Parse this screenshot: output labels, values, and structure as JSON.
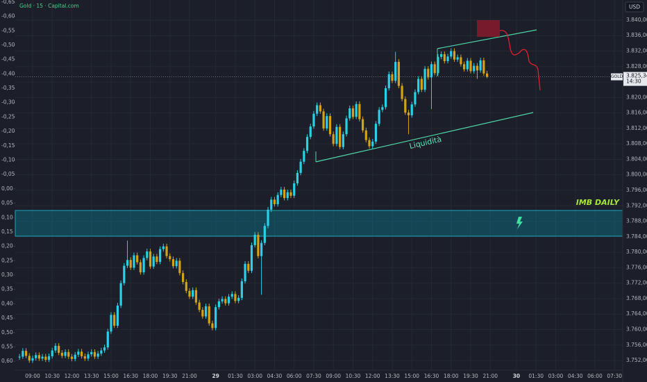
{
  "chart_data": {
    "type": "candlestick",
    "title": "Gold · 15 · Capital.com",
    "symbol": "GOLD",
    "currency": "USD",
    "countdown": "14:30",
    "last_price": {
      "value": 3825.34,
      "label": "3.825,34"
    },
    "annotations": [
      "Liquidità",
      "IMB DAILY"
    ],
    "up_color": "#2bd0e6",
    "down_color": "#d4a21a",
    "grid": true,
    "y2_inverted": true,
    "xlim": [
      -1.3,
      184.5
    ],
    "xticks": [
      {
        "value": 4,
        "label": "09:00"
      },
      {
        "value": 10,
        "label": "10:30"
      },
      {
        "value": 16,
        "label": "12:00"
      },
      {
        "value": 22,
        "label": "13:30"
      },
      {
        "value": 28,
        "label": "15:00"
      },
      {
        "value": 34,
        "label": "16:30"
      },
      {
        "value": 40,
        "label": "18:00"
      },
      {
        "value": 46,
        "label": "19:30"
      },
      {
        "value": 52,
        "label": "21:00"
      },
      {
        "value": 60,
        "label": "29"
      },
      {
        "value": 66,
        "label": "01:30"
      },
      {
        "value": 72,
        "label": "03:00"
      },
      {
        "value": 78,
        "label": "04:30"
      },
      {
        "value": 84,
        "label": "06:00"
      },
      {
        "value": 90,
        "label": "07:30"
      },
      {
        "value": 96,
        "label": "09:00"
      },
      {
        "value": 102,
        "label": "10:30"
      },
      {
        "value": 108,
        "label": "12:00"
      },
      {
        "value": 114,
        "label": "13:30"
      },
      {
        "value": 120,
        "label": "15:00"
      },
      {
        "value": 126,
        "label": "16:30"
      },
      {
        "value": 132,
        "label": "18:00"
      },
      {
        "value": 138,
        "label": "19:30"
      },
      {
        "value": 144,
        "label": "21:00"
      },
      {
        "value": 152,
        "label": "30"
      },
      {
        "value": 158,
        "label": "01:30"
      },
      {
        "value": 164,
        "label": "03:00"
      },
      {
        "value": 170,
        "label": "04:30"
      },
      {
        "value": 176,
        "label": "06:00"
      },
      {
        "value": 182,
        "label": "07:30"
      }
    ],
    "ylim": [
      3749.5,
      3845.2
    ],
    "yticks": [
      {
        "value": 3752,
        "label": "3.752,00"
      },
      {
        "value": 3756,
        "label": "3.756,00"
      },
      {
        "value": 3760,
        "label": "3.760,00"
      },
      {
        "value": 3764,
        "label": "3.764,00"
      },
      {
        "value": 3768,
        "label": "3.768,00"
      },
      {
        "value": 3772,
        "label": "3.772,00"
      },
      {
        "value": 3776,
        "label": "3.776,00"
      },
      {
        "value": 3780,
        "label": "3.780,00"
      },
      {
        "value": 3784,
        "label": "3.784,00"
      },
      {
        "value": 3788,
        "label": "3.788,00"
      },
      {
        "value": 3792,
        "label": "3.792,00"
      },
      {
        "value": 3796,
        "label": "3.796,00"
      },
      {
        "value": 3800,
        "label": "3.800,00"
      },
      {
        "value": 3804,
        "label": "3.804,00"
      },
      {
        "value": 3808,
        "label": "3.808,00"
      },
      {
        "value": 3812,
        "label": "3.812,00"
      },
      {
        "value": 3816,
        "label": "3.816,00"
      },
      {
        "value": 3820,
        "label": "3.820,00"
      },
      {
        "value": 3824,
        "label": "3.824,00"
      },
      {
        "value": 3828,
        "label": "3.828,00"
      },
      {
        "value": 3832,
        "label": "3.832,00"
      },
      {
        "value": 3836,
        "label": "3.836,00"
      },
      {
        "value": 3840,
        "label": "3.840,00"
      }
    ],
    "y2lim": [
      -0.657,
      0.631
    ],
    "y2ticks": [
      {
        "value": -0.65,
        "label": "-0,65"
      },
      {
        "value": -0.6,
        "label": "-0,60"
      },
      {
        "value": -0.55,
        "label": "-0,55"
      },
      {
        "value": -0.5,
        "label": "-0,50"
      },
      {
        "value": -0.45,
        "label": "-0,45"
      },
      {
        "value": -0.4,
        "label": "-0,40"
      },
      {
        "value": -0.35,
        "label": "-0,35"
      },
      {
        "value": -0.3,
        "label": "-0,30"
      },
      {
        "value": -0.25,
        "label": "-0,25"
      },
      {
        "value": -0.2,
        "label": "-0,20"
      },
      {
        "value": -0.15,
        "label": "-0,15"
      },
      {
        "value": -0.1,
        "label": "-0,10"
      },
      {
        "value": -0.05,
        "label": "-0,05"
      },
      {
        "value": 0,
        "label": "0,00"
      },
      {
        "value": 0.05,
        "label": "0,05"
      },
      {
        "value": 0.1,
        "label": "0,10"
      },
      {
        "value": 0.15,
        "label": "0,15"
      },
      {
        "value": 0.2,
        "label": "0,20"
      },
      {
        "value": 0.25,
        "label": "0,25"
      },
      {
        "value": 0.3,
        "label": "0,30"
      },
      {
        "value": 0.35,
        "label": "0,35"
      },
      {
        "value": 0.4,
        "label": "0,40"
      },
      {
        "value": 0.45,
        "label": "0,45"
      },
      {
        "value": 0.5,
        "label": "0,50"
      },
      {
        "value": 0.55,
        "label": "0,55"
      },
      {
        "value": 0.6,
        "label": "0,60"
      }
    ],
    "open": [
      3752.8,
      3753.0,
      3754.5,
      3753.2,
      3752.0,
      3752.6,
      3753.4,
      3752.5,
      3753.0,
      3752.2,
      3753.1,
      3754.6,
      3755.8,
      3754.0,
      3753.2,
      3754.2,
      3753.0,
      3752.4,
      3753.5,
      3754.3,
      3753.1,
      3752.5,
      3753.6,
      3754.2,
      3753.0,
      3753.8,
      3754.6,
      3755.4,
      3759.5,
      3763.8,
      3761.0,
      3766.2,
      3772.0,
      3776.5,
      3778.0,
      3776.0,
      3779.2,
      3777.4,
      3774.8,
      3778.5,
      3780.2,
      3776.3,
      3778.9,
      3777.5,
      3780.8,
      3781.5,
      3779.0,
      3778.2,
      3776.4,
      3777.8,
      3774.6,
      3772.3,
      3770.0,
      3768.5,
      3770.2,
      3767.0,
      3765.1,
      3763.4,
      3766.0,
      3761.6,
      3760.4,
      3765.8,
      3767.3,
      3767.9,
      3766.8,
      3768.5,
      3769.2,
      3767.4,
      3768.2,
      3772.5,
      3777.0,
      3775.2,
      3781.8,
      3784.5,
      3779.0,
      3782.4,
      3786.8,
      3791.0,
      3793.6,
      3792.4,
      3794.8,
      3796.2,
      3794.0,
      3795.5,
      3794.6,
      3797.8,
      3800.5,
      3803.4,
      3806.2,
      3809.8,
      3812.5,
      3815.8,
      3818.0,
      3816.4,
      3812.0,
      3815.2,
      3810.5,
      3808.0,
      3812.4,
      3807.2,
      3810.5,
      3814.6,
      3817.2,
      3815.0,
      3818.3,
      3814.4,
      3811.5,
      3809.0,
      3807.4,
      3808.6,
      3813.2,
      3816.8,
      3817.5,
      3822.4,
      3826.0,
      3824.3,
      3829.2,
      3823.0,
      3819.6,
      3816.1,
      3815.4,
      3818.2,
      3821.4,
      3824.8,
      3822.0,
      3827.4,
      3825.2,
      3828.6,
      3826.3,
      3830.5,
      3831.2,
      3829.4,
      3830.6,
      3832.0,
      3829.8,
      3830.4,
      3828.6,
      3827.3,
      3829.5,
      3826.8,
      3828.2,
      3827.0,
      3829.6,
      3826.2
    ],
    "high": [
      3753.7,
      3755.2,
      3755.2,
      3753.9,
      3753.3,
      3754.1,
      3754.1,
      3753.7,
      3753.7,
      3753.8,
      3755.3,
      3756.5,
      3756.5,
      3754.7,
      3754.9,
      3754.9,
      3753.7,
      3754.2,
      3755.0,
      3755.0,
      3753.8,
      3754.3,
      3754.9,
      3754.9,
      3754.5,
      3755.3,
      3756.1,
      3760.2,
      3764.5,
      3764.5,
      3766.9,
      3772.7,
      3777.2,
      3783.0,
      3778.7,
      3779.9,
      3779.9,
      3778.1,
      3779.2,
      3780.9,
      3780.9,
      3779.6,
      3779.6,
      3781.5,
      3782.2,
      3782.2,
      3779.7,
      3778.9,
      3778.5,
      3778.5,
      3775.3,
      3773.0,
      3770.7,
      3770.9,
      3770.9,
      3767.7,
      3765.8,
      3766.7,
      3766.7,
      3762.3,
      3766.5,
      3768.0,
      3768.6,
      3768.6,
      3769.2,
      3769.9,
      3769.9,
      3768.9,
      3773.2,
      3777.7,
      3777.7,
      3782.5,
      3785.2,
      3785.2,
      3783.1,
      3787.5,
      3791.7,
      3794.3,
      3794.3,
      3795.5,
      3796.9,
      3796.9,
      3796.2,
      3796.2,
      3798.5,
      3801.2,
      3804.1,
      3806.9,
      3810.5,
      3813.2,
      3816.5,
      3818.7,
      3818.7,
      3817.1,
      3815.9,
      3815.9,
      3811.2,
      3813.1,
      3813.1,
      3811.2,
      3815.3,
      3817.9,
      3817.9,
      3819.0,
      3819.0,
      3815.1,
      3812.2,
      3809.7,
      3809.3,
      3813.9,
      3817.5,
      3818.2,
      3823.1,
      3826.7,
      3826.7,
      3831.8,
      3829.9,
      3823.7,
      3820.3,
      3816.8,
      3818.9,
      3822.1,
      3825.5,
      3825.5,
      3828.1,
      3828.1,
      3829.3,
      3829.3,
      3831.2,
      3831.9,
      3831.9,
      3831.3,
      3832.7,
      3832.7,
      3831.1,
      3831.1,
      3829.3,
      3830.2,
      3830.2,
      3828.9,
      3828.9,
      3830.3,
      3830.3,
      3826.9
    ],
    "low": [
      3752.2,
      3752.4,
      3752.6,
      3751.4,
      3751.4,
      3752.0,
      3751.9,
      3751.9,
      3751.6,
      3751.6,
      3752.5,
      3754.0,
      3753.4,
      3752.6,
      3752.6,
      3752.4,
      3751.8,
      3751.8,
      3752.9,
      3752.5,
      3751.9,
      3751.9,
      3753.0,
      3752.4,
      3752.4,
      3753.2,
      3754.0,
      3754.8,
      3758.9,
      3760.4,
      3760.4,
      3765.6,
      3771.4,
      3775.9,
      3775.4,
      3775.4,
      3776.8,
      3774.2,
      3774.2,
      3777.9,
      3775.7,
      3775.7,
      3776.9,
      3776.9,
      3780.2,
      3778.4,
      3777.6,
      3775.8,
      3775.8,
      3774.0,
      3771.7,
      3769.4,
      3767.9,
      3767.9,
      3766.4,
      3764.5,
      3762.8,
      3762.8,
      3761.0,
      3759.8,
      3759.8,
      3765.2,
      3766.7,
      3766.2,
      3766.2,
      3767.9,
      3766.8,
      3766.8,
      3767.6,
      3771.9,
      3774.6,
      3774.6,
      3781.2,
      3778.4,
      3769.0,
      3781.8,
      3786.2,
      3790.4,
      3791.8,
      3791.8,
      3794.2,
      3793.4,
      3793.4,
      3794.0,
      3794.0,
      3797.2,
      3799.9,
      3802.8,
      3805.6,
      3809.2,
      3811.9,
      3815.2,
      3815.8,
      3811.4,
      3811.4,
      3809.9,
      3807.4,
      3807.4,
      3806.6,
      3806.6,
      3809.9,
      3814.0,
      3814.4,
      3814.4,
      3813.8,
      3810.9,
      3808.4,
      3806.8,
      3806.8,
      3808.0,
      3812.6,
      3816.2,
      3816.9,
      3821.8,
      3823.7,
      3823.7,
      3822.4,
      3819.0,
      3815.5,
      3810.5,
      3814.8,
      3817.6,
      3820.8,
      3821.4,
      3821.4,
      3824.6,
      3817.0,
      3825.7,
      3825.7,
      3829.9,
      3828.8,
      3828.8,
      3830.0,
      3829.2,
      3829.2,
      3828.0,
      3826.7,
      3826.7,
      3826.2,
      3826.2,
      3824.8,
      3826.4,
      3825.6,
      3825.0
    ],
    "close": [
      3753.0,
      3754.5,
      3753.2,
      3752.0,
      3752.6,
      3753.4,
      3752.5,
      3753.0,
      3752.2,
      3753.1,
      3754.6,
      3755.8,
      3754.0,
      3753.2,
      3754.2,
      3753.0,
      3752.4,
      3753.5,
      3754.3,
      3753.1,
      3752.5,
      3753.6,
      3754.2,
      3753.0,
      3753.8,
      3754.6,
      3755.4,
      3759.5,
      3763.8,
      3761.0,
      3766.2,
      3772.0,
      3776.5,
      3778.0,
      3776.0,
      3779.2,
      3777.4,
      3774.8,
      3778.5,
      3780.2,
      3776.3,
      3778.9,
      3777.5,
      3780.8,
      3781.5,
      3779.0,
      3778.2,
      3776.4,
      3777.8,
      3774.6,
      3772.3,
      3770.0,
      3768.5,
      3770.2,
      3767.0,
      3765.1,
      3763.4,
      3766.0,
      3761.6,
      3760.4,
      3765.8,
      3767.3,
      3767.9,
      3766.8,
      3768.5,
      3769.2,
      3767.4,
      3768.2,
      3772.5,
      3777.0,
      3775.2,
      3781.8,
      3784.5,
      3779.0,
      3782.4,
      3786.8,
      3791.0,
      3793.6,
      3792.4,
      3794.8,
      3796.2,
      3794.0,
      3795.5,
      3794.6,
      3797.8,
      3800.5,
      3803.4,
      3806.2,
      3809.8,
      3812.5,
      3815.8,
      3818.0,
      3816.4,
      3812.0,
      3815.2,
      3810.5,
      3808.0,
      3812.4,
      3807.2,
      3810.5,
      3814.6,
      3817.2,
      3815.0,
      3818.3,
      3814.4,
      3811.5,
      3809.0,
      3807.4,
      3808.6,
      3813.2,
      3816.8,
      3817.5,
      3822.4,
      3826.0,
      3824.3,
      3829.2,
      3823.0,
      3819.6,
      3816.1,
      3815.4,
      3818.2,
      3821.4,
      3824.8,
      3822.0,
      3827.4,
      3825.2,
      3828.6,
      3826.3,
      3830.5,
      3831.2,
      3829.4,
      3830.6,
      3832.0,
      3829.8,
      3830.4,
      3828.6,
      3827.3,
      3829.5,
      3826.8,
      3828.2,
      3827.0,
      3829.6,
      3826.2,
      3825.34
    ]
  }
}
